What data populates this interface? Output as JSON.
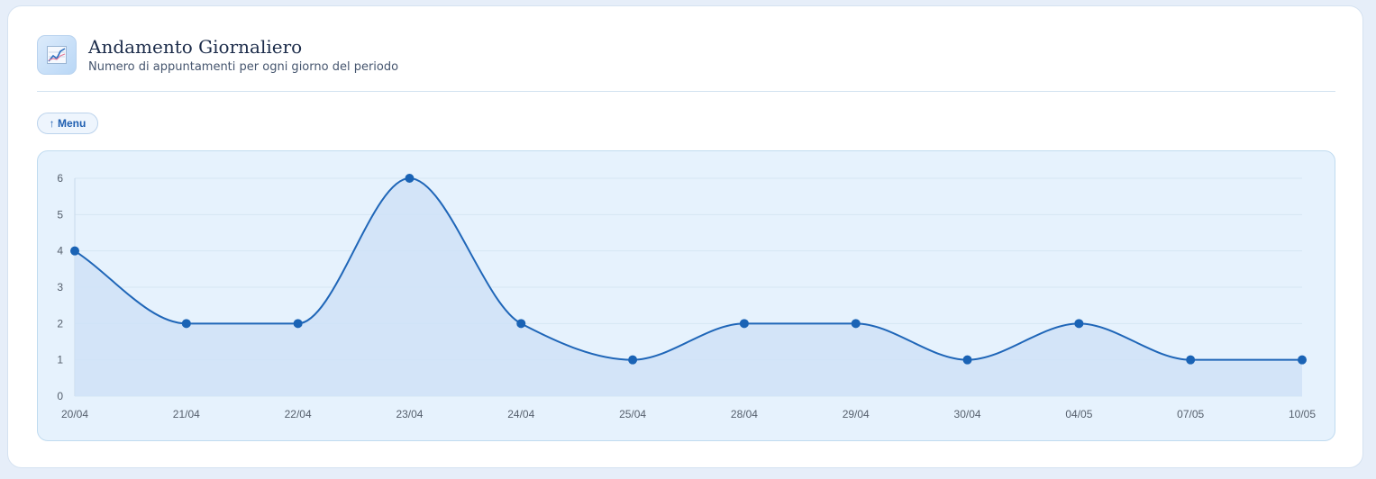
{
  "header": {
    "icon": "chart-increasing-icon",
    "title": "Andamento Giornaliero",
    "subtitle": "Numero di appuntamenti per ogni giorno del periodo"
  },
  "menu_button": {
    "label": "↑ Menu"
  },
  "colors": {
    "line": "#1f66b8",
    "area": "#cfe2f7",
    "point": "#1a63b5",
    "grid": "#d6e6f3",
    "panel": "#e6f2fd"
  },
  "chart_data": {
    "type": "area",
    "x": [
      "20/04",
      "21/04",
      "22/04",
      "23/04",
      "24/04",
      "25/04",
      "28/04",
      "29/04",
      "30/04",
      "04/05",
      "07/05",
      "10/05"
    ],
    "values": [
      4,
      2,
      2,
      6,
      2,
      1,
      2,
      2,
      1,
      2,
      1,
      1
    ],
    "ylim": [
      0,
      6
    ],
    "yticks": [
      0,
      1,
      2,
      3,
      4,
      5,
      6
    ],
    "grid": true,
    "smooth": true,
    "legend": "none",
    "title": "",
    "xlabel": "",
    "ylabel": ""
  }
}
